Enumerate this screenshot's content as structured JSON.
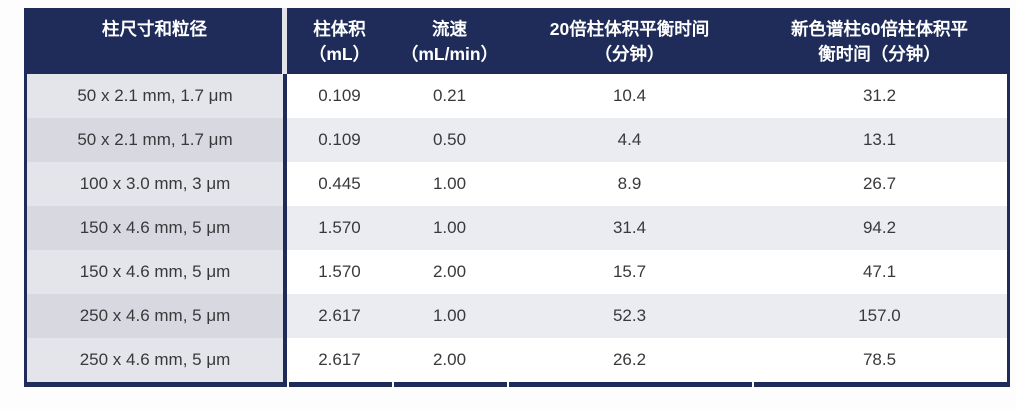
{
  "colors": {
    "header_bg": "#1f2c5a",
    "header_text": "#ffffff",
    "border_navy": "#1f2c5a",
    "col1_row_bg": "#e4e4eb",
    "col1_row_alt_bg": "#d8d8e1",
    "row_bg": "#ffffff",
    "row_alt_bg": "#eaecf2",
    "header_gap": "#e3e4ea",
    "cell_text": "#39393b",
    "page_bg": "#fdfdfe"
  },
  "table": {
    "columns": [
      {
        "line1": "柱尺寸和粒径",
        "line2": ""
      },
      {
        "line1": "柱体积",
        "line2": "（mL）"
      },
      {
        "line1": "流速",
        "line2": "（mL/min）"
      },
      {
        "line1": "20倍柱体积平衡时间",
        "line2": "（分钟）"
      },
      {
        "line1": "新色谱柱60倍柱体积平",
        "line2": "衡时间（分钟）"
      }
    ],
    "rows": [
      [
        "50 x 2.1 mm, 1.7 μm",
        "0.109",
        "0.21",
        "10.4",
        "31.2"
      ],
      [
        "50 x 2.1 mm, 1.7 μm",
        "0.109",
        "0.50",
        "4.4",
        "13.1"
      ],
      [
        "100 x 3.0 mm, 3 μm",
        "0.445",
        "1.00",
        "8.9",
        "26.7"
      ],
      [
        "150 x 4.6 mm, 5 μm",
        "1.570",
        "1.00",
        "31.4",
        "94.2"
      ],
      [
        "150 x 4.6 mm, 5 μm",
        "1.570",
        "2.00",
        "15.7",
        "47.1"
      ],
      [
        "250 x 4.6 mm, 5 μm",
        "2.617",
        "1.00",
        "52.3",
        "157.0"
      ],
      [
        "250 x 4.6 mm, 5 μm",
        "2.617",
        "2.00",
        "26.2",
        "78.5"
      ]
    ]
  }
}
